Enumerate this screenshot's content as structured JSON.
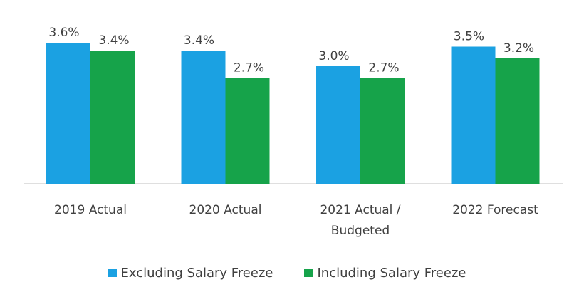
{
  "chart_data": {
    "type": "bar",
    "categories": [
      "2019 Actual",
      "2020 Actual",
      "2021 Actual /\nBudgeted",
      "2022 Forecast"
    ],
    "series": [
      {
        "name": "Excluding Salary Freeze",
        "color": "#1ba1e2",
        "values": [
          3.6,
          3.4,
          3.0,
          3.5
        ],
        "labels": [
          "3.6%",
          "3.4%",
          "3.0%",
          "3.5%"
        ]
      },
      {
        "name": "Including Salary Freeze",
        "color": "#16a34a",
        "values": [
          3.4,
          2.7,
          2.7,
          3.2
        ],
        "labels": [
          "3.4%",
          "2.7%",
          "2.7%",
          "3.2%"
        ]
      }
    ],
    "ylim": [
      0,
      3.6
    ],
    "title": "",
    "xlabel": "",
    "ylabel": ""
  }
}
